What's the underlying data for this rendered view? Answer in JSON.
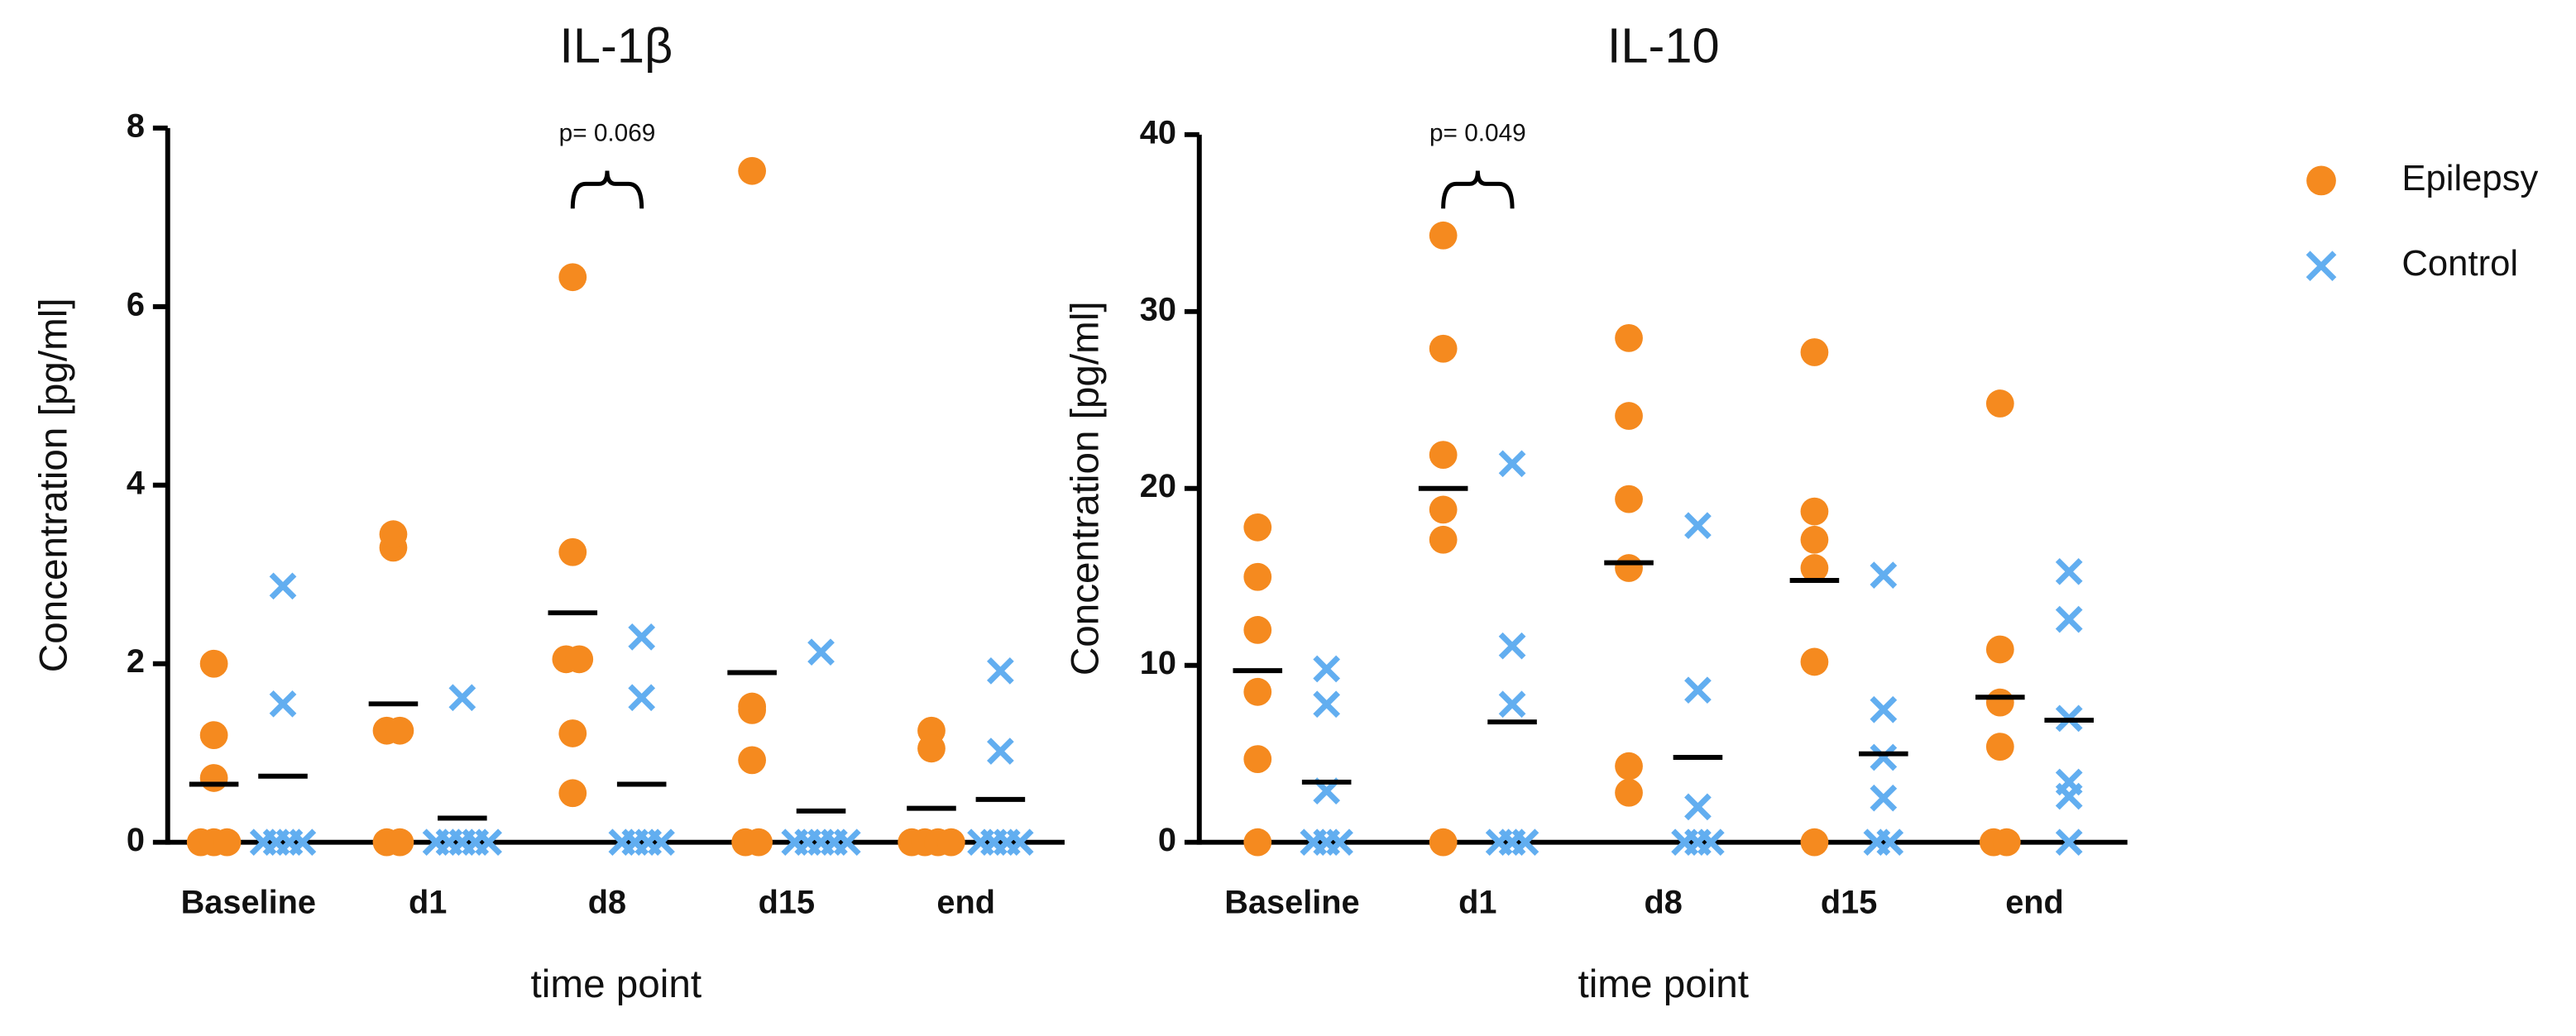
{
  "chart_data": [
    {
      "type": "dot",
      "title": "IL-1β",
      "y_label": "Concentration [pg/ml]",
      "x_label": "time point",
      "categories": [
        "Baseline",
        "d1",
        "d8",
        "d15",
        "end"
      ],
      "ylim": [
        0,
        8
      ],
      "yticks": [
        0,
        2,
        4,
        6,
        8
      ],
      "series": [
        {
          "color": "#f58a1f",
          "marker": "circle",
          "values": [
            [
              2.0,
              1.2,
              0.72,
              0,
              0,
              0
            ],
            [
              3.3,
              3.45,
              1.25,
              1.25,
              0,
              0
            ],
            [
              6.33,
              3.25,
              2.05,
              2.05,
              1.22,
              0.55
            ],
            [
              7.52,
              1.52,
              1.48,
              0.92,
              0,
              0
            ],
            [
              1.25,
              1.05,
              0,
              0,
              0,
              0
            ]
          ],
          "means": [
            0.65,
            1.55,
            2.57,
            1.9,
            0.38
          ]
        },
        {
          "color": "#62aef0",
          "marker": "cross",
          "values": [
            [
              2.87,
              1.55,
              0,
              0,
              0,
              0
            ],
            [
              1.62,
              0,
              0,
              0,
              0,
              0
            ],
            [
              2.3,
              1.62,
              0,
              0,
              0,
              0
            ],
            [
              2.13,
              0,
              0,
              0,
              0,
              0
            ],
            [
              1.92,
              1.02,
              0,
              0,
              0,
              0
            ]
          ],
          "means": [
            0.74,
            0.27,
            0.65,
            0.35,
            0.48
          ]
        }
      ],
      "annotations": [
        {
          "text": "p= 0.069",
          "category": "d8"
        }
      ]
    },
    {
      "type": "dot",
      "title": "IL-10",
      "y_label": "Concentration [pg/ml]",
      "x_label": "time point",
      "categories": [
        "Baseline",
        "d1",
        "d8",
        "d15",
        "end"
      ],
      "ylim": [
        0,
        40
      ],
      "yticks": [
        0,
        10,
        20,
        30,
        40
      ],
      "series": [
        {
          "name": "Epilepsy",
          "color": "#f58a1f",
          "marker": "circle",
          "values": [
            [
              17.8,
              15.0,
              12.0,
              8.5,
              4.7,
              0
            ],
            [
              34.3,
              27.9,
              21.9,
              18.8,
              17.1,
              0
            ],
            [
              28.5,
              24.1,
              19.4,
              15.5,
              4.3,
              2.8
            ],
            [
              27.7,
              18.7,
              17.1,
              15.5,
              10.2,
              0
            ],
            [
              24.8,
              10.9,
              7.9,
              5.4,
              0,
              0
            ]
          ],
          "means": [
            9.7,
            20,
            15.8,
            14.8,
            8.2
          ]
        },
        {
          "name": "Control",
          "color": "#62aef0",
          "marker": "cross",
          "values": [
            [
              9.8,
              7.8,
              2.9,
              0,
              0,
              0
            ],
            [
              21.4,
              11.1,
              7.8,
              0,
              0,
              0
            ],
            [
              17.9,
              8.6,
              2.0,
              0,
              0,
              0
            ],
            [
              15.1,
              7.5,
              4.8,
              2.5,
              0,
              0
            ],
            [
              15.3,
              12.6,
              7.0,
              3.4,
              2.6,
              0
            ]
          ],
          "means": [
            3.4,
            6.8,
            4.8,
            5.0,
            6.9
          ]
        }
      ],
      "annotations": [
        {
          "text": "p= 0.049",
          "category": "d1"
        }
      ]
    }
  ]
}
